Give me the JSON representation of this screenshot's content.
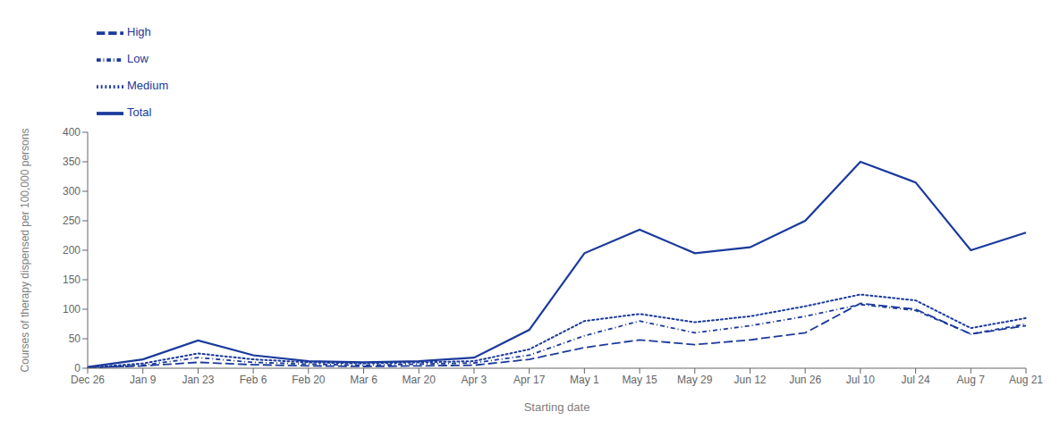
{
  "chart_data": {
    "type": "line",
    "categories": [
      "Dec 26",
      "Jan 9",
      "Jan 23",
      "Feb 6",
      "Feb 20",
      "Mar 6",
      "Mar 20",
      "Apr 3",
      "Apr 17",
      "May 1",
      "May 15",
      "May 29",
      "Jun 12",
      "Jun 26",
      "Jul 10",
      "Jul 24",
      "Aug 7",
      "Aug 21"
    ],
    "series": [
      {
        "name": "Total",
        "color": "#1a3a9c",
        "line_style": "solid",
        "values": [
          2,
          15,
          47,
          22,
          12,
          10,
          12,
          18,
          65,
          195,
          235,
          195,
          205,
          250,
          350,
          315,
          200,
          230
        ]
      },
      {
        "name": "High",
        "color": "#1a3a9c",
        "line_style": "dashed",
        "values": [
          1,
          4,
          10,
          6,
          4,
          3,
          4,
          5,
          15,
          35,
          48,
          40,
          48,
          60,
          110,
          100,
          58,
          72
        ]
      },
      {
        "name": "Medium",
        "color": "#1a3a9c",
        "line_style": "dotted",
        "values": [
          1,
          8,
          25,
          15,
          10,
          8,
          10,
          12,
          32,
          80,
          92,
          78,
          88,
          105,
          125,
          115,
          68,
          85
        ]
      },
      {
        "name": "Low",
        "color": "#1a3a9c",
        "line_style": "dashdot",
        "values": [
          0,
          5,
          18,
          10,
          7,
          5,
          7,
          9,
          22,
          55,
          80,
          60,
          72,
          88,
          108,
          98,
          58,
          75
        ]
      }
    ],
    "xlabel": "Starting date",
    "ylabel": "Courses of therapy dispensed per 100,000 persons",
    "ylim": [
      0,
      400
    ],
    "yticks": [
      0,
      50,
      100,
      150,
      200,
      250,
      300,
      350,
      400
    ],
    "grid": false,
    "legend": "upper left"
  }
}
